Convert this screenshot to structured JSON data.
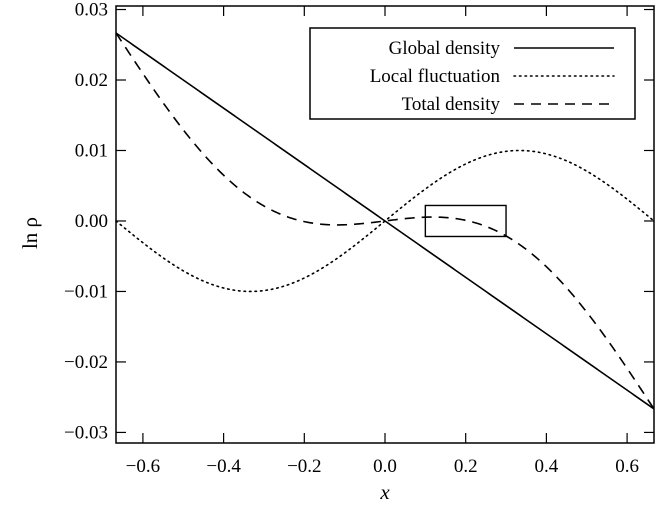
{
  "chart_data": {
    "type": "line",
    "xlabel": "x",
    "ylabel": "ln ρ",
    "xlim": [
      -0.6667,
      0.6667
    ],
    "ylim": [
      -0.0315,
      0.0305
    ],
    "x_ticks": [
      -0.6,
      -0.4,
      -0.2,
      0.0,
      0.2,
      0.4,
      0.6
    ],
    "x_tick_labels": [
      "−0.6",
      "−0.4",
      "−0.2",
      "0.0",
      "0.2",
      "0.4",
      "0.6"
    ],
    "y_ticks": [
      0.03,
      0.02,
      0.01,
      0.0,
      -0.01,
      -0.02,
      -0.03
    ],
    "y_tick_labels": [
      "0.03",
      "0.02",
      "0.01",
      "0.00",
      "−0.01",
      "−0.02",
      "−0.03"
    ],
    "grid": false,
    "legend_position": "top-right",
    "series": [
      {
        "name": "Global density",
        "style": "solid",
        "color": "#000000",
        "formula": "-0.04*x"
      },
      {
        "name": "Local fluctuation",
        "style": "dotted",
        "color": "#000000",
        "formula": "0.01*sin(1.5*pi*x)"
      },
      {
        "name": "Total density",
        "style": "dashed",
        "color": "#000000",
        "formula": "-0.04*x + 0.01*sin(1.5*pi*x)"
      }
    ],
    "annotation_box": {
      "x": [
        0.1,
        0.3
      ],
      "y": [
        -0.0022,
        0.0022
      ]
    }
  }
}
